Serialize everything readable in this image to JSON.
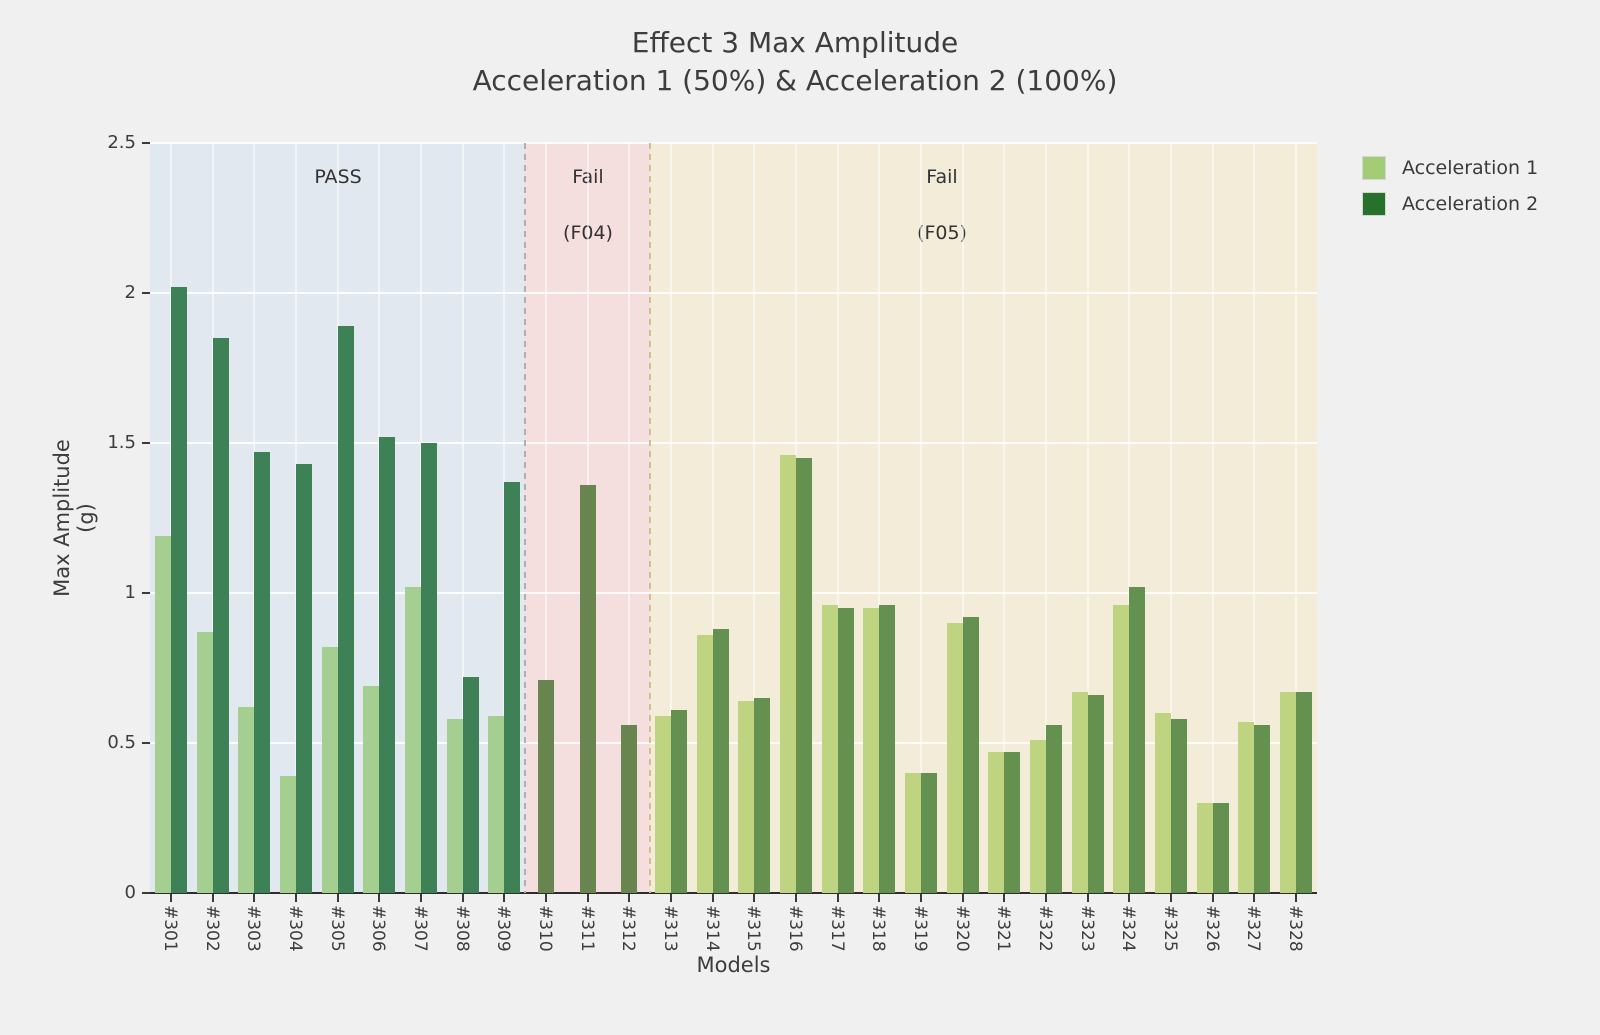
{
  "figure": {
    "title_line1": "Effect 3 Max Amplitude",
    "title_line2": "Acceleration 1 (50%) & Acceleration 2 (100%)",
    "background": "#f0f0f0"
  },
  "axes": {
    "x_label": "Models",
    "y_label": "Max Amplitude (g)",
    "ylim": [
      0,
      2.5
    ],
    "y_ticks": [
      0,
      0.5,
      1,
      1.5,
      2,
      2.5
    ],
    "y_tick_labels": [
      "0",
      "0.5",
      "1",
      "1.5",
      "2",
      "2.5"
    ],
    "grid": true
  },
  "legend": {
    "position": "upper right outside",
    "entries": [
      {
        "label": "Acceleration 1",
        "color": "#a2cd74"
      },
      {
        "label": "Acceleration 2",
        "color": "#26722a"
      }
    ]
  },
  "regions": [
    {
      "id": "pass",
      "label_line1": "PASS",
      "label_line2": "",
      "start_index": 0,
      "end_index": 8,
      "bg": "#e2e8f0",
      "bar1": "#a4cf91",
      "bar2": "#3e8156",
      "divider_left": null
    },
    {
      "id": "f04",
      "label_line1": "Fail",
      "label_line2": "(F04)",
      "start_index": 9,
      "end_index": 11,
      "bg": "#f4dede",
      "bar1": "#68854f",
      "bar2": "#68854f",
      "bar_single": "#68854f",
      "divider_left": "#b3aeb0"
    },
    {
      "id": "f05",
      "label_line1": "Fail",
      "label_line2": "(F05)",
      "start_index": 12,
      "end_index": 27,
      "bg": "#f2ecd8",
      "bar1": "#bfd480",
      "bar2": "#659150",
      "divider_left": "#d5bd92"
    }
  ],
  "chart_data": {
    "type": "bar",
    "title": "Effect 3 Max Amplitude — Acceleration 1 (50%) & Acceleration 2 (100%)",
    "xlabel": "Models",
    "ylabel": "Max Amplitude (g)",
    "ylim": [
      0,
      2.5
    ],
    "categories": [
      "#301",
      "#302",
      "#303",
      "#304",
      "#305",
      "#306",
      "#307",
      "#308",
      "#309",
      "#310",
      "#311",
      "#312",
      "#313",
      "#314",
      "#315",
      "#316",
      "#317",
      "#318",
      "#319",
      "#320",
      "#321",
      "#322",
      "#323",
      "#324",
      "#325",
      "#326",
      "#327",
      "#328"
    ],
    "series": [
      {
        "name": "Acceleration 1",
        "values": [
          1.19,
          0.87,
          0.62,
          0.39,
          0.82,
          0.69,
          1.02,
          0.58,
          0.59,
          null,
          null,
          null,
          0.59,
          0.86,
          0.64,
          1.46,
          0.96,
          0.95,
          0.4,
          0.9,
          0.47,
          0.51,
          0.67,
          0.96,
          0.6,
          0.3,
          0.57,
          0.67
        ]
      },
      {
        "name": "Acceleration 2",
        "values": [
          2.02,
          1.85,
          1.47,
          1.43,
          1.89,
          1.52,
          1.5,
          0.72,
          1.37,
          0.71,
          1.36,
          0.56,
          0.61,
          0.88,
          0.65,
          1.45,
          0.95,
          0.96,
          0.4,
          0.92,
          0.47,
          0.56,
          0.66,
          1.02,
          0.58,
          0.3,
          0.56,
          0.67
        ]
      }
    ],
    "region_bands": [
      {
        "label": "PASS",
        "categories": [
          "#301",
          "#309"
        ]
      },
      {
        "label": "Fail (F04)",
        "categories": [
          "#310",
          "#312"
        ]
      },
      {
        "label": "Fail (F05)",
        "categories": [
          "#313",
          "#328"
        ]
      }
    ]
  }
}
